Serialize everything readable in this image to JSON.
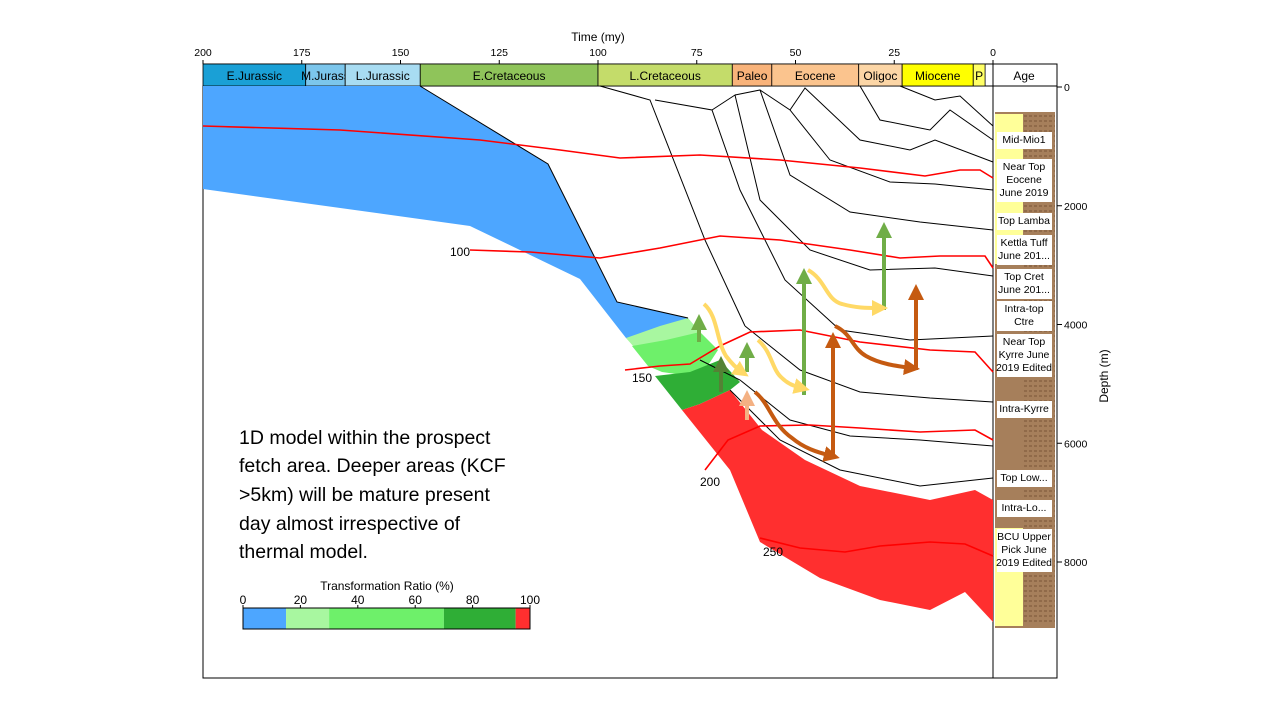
{
  "chart_data": {
    "type": "burial-history",
    "time_axis": {
      "title": "Time (my)",
      "ticks": [
        "200",
        "175",
        "150",
        "125",
        "100",
        "75",
        "50",
        "25",
        "0"
      ]
    },
    "depth_axis": {
      "title": "Depth (m)",
      "ticks": [
        "0",
        "2000",
        "4000",
        "6000",
        "8000"
      ]
    },
    "periods": [
      {
        "label": "E.Jurassic",
        "color": "#1aa0d6"
      },
      {
        "label": "M.Jurass",
        "color": "#7cc6ec"
      },
      {
        "label": "L.Jurassic",
        "color": "#a8dcf2"
      },
      {
        "label": "E.Cretaceous",
        "color": "#8fc45a"
      },
      {
        "label": "L.Cretaceous",
        "color": "#c4dc6a"
      },
      {
        "label": "Paleo",
        "color": "#f9b37a"
      },
      {
        "label": "Eocene",
        "color": "#fbc48e"
      },
      {
        "label": "Oligoc",
        "color": "#fcd6a6"
      },
      {
        "label": "Miocene",
        "color": "#ffff00"
      },
      {
        "label": "P",
        "color": "#ffff66"
      }
    ],
    "age_column_title": "Age",
    "formations": [
      "Mid-Mio1",
      "Near Top Eocene June 2019",
      "Top Lamba",
      "Kettla Tuff June 201...",
      "Top Cret June 201...",
      "Intra-top Ctre",
      "Near Top Kyrre June 2019 Edited",
      "Intra-Kyrre",
      "Top Low...",
      "Intra-Lo...",
      "BCU Upper Pick June 2019 Edited"
    ],
    "isotherm_labels": [
      "100",
      "150",
      "200",
      "250"
    ],
    "legend": {
      "title": "Transformation Ratio (%)",
      "ticks": [
        "0",
        "20",
        "40",
        "60",
        "80",
        "100"
      ],
      "bins": [
        {
          "from": 0,
          "to": 15,
          "color": "#4da6ff"
        },
        {
          "from": 15,
          "to": 30,
          "color": "#a8f7a0"
        },
        {
          "from": 30,
          "to": 70,
          "color": "#6ef06a"
        },
        {
          "from": 70,
          "to": 95,
          "color": "#2fae36"
        },
        {
          "from": 95,
          "to": 100,
          "color": "#ff2f2f"
        }
      ]
    },
    "colors": {
      "isotherm": "#ff0000",
      "horizon": "#000000",
      "arrow_green": "#70ad47",
      "arrow_orange": "#c55a11",
      "arrow_yellow": "#ffd966",
      "arrow_light_orange": "#f4b183",
      "arrow_dark_green": "#548235"
    }
  },
  "caption": {
    "lines": [
      "1D model within the prospect",
      "fetch area. Deeper areas (KCF",
      ">5km) will be mature present",
      "day almost irrespective of",
      "thermal model."
    ]
  }
}
